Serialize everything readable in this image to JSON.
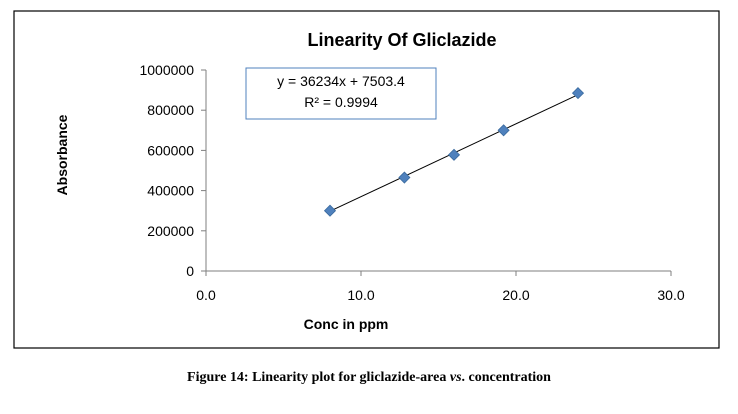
{
  "chart_data": {
    "type": "scatter",
    "title": "Linearity Of Gliclazide",
    "xlabel": "Conc in ppm",
    "ylabel": "Absorbance",
    "xlim": [
      0,
      30
    ],
    "ylim": [
      0,
      1000000
    ],
    "x_ticks": [
      "0.0",
      "10.0",
      "20.0",
      "30.0"
    ],
    "x_tick_values": [
      0,
      10,
      20,
      30
    ],
    "y_ticks": [
      "0",
      "200000",
      "400000",
      "600000",
      "800000",
      "1000000"
    ],
    "y_tick_values": [
      0,
      200000,
      400000,
      600000,
      800000,
      1000000
    ],
    "grid": false,
    "legend": "none",
    "marker": "diamond",
    "marker_color": "#4f81bd",
    "trendline": {
      "type": "linear",
      "slope": 36234,
      "intercept": 7503.4,
      "equation_text": "y = 36234x + 7503.4",
      "r2_text": "R² = 0.9994"
    },
    "points": [
      {
        "x": 8,
        "y": 300000
      },
      {
        "x": 12.8,
        "y": 465000
      },
      {
        "x": 16,
        "y": 578000
      },
      {
        "x": 19.2,
        "y": 700000
      },
      {
        "x": 24,
        "y": 885000
      }
    ]
  },
  "caption": {
    "prefix": "Figure 14: Linearity plot for gliclazide-area ",
    "italic": "vs",
    "suffix": ". concentration"
  }
}
